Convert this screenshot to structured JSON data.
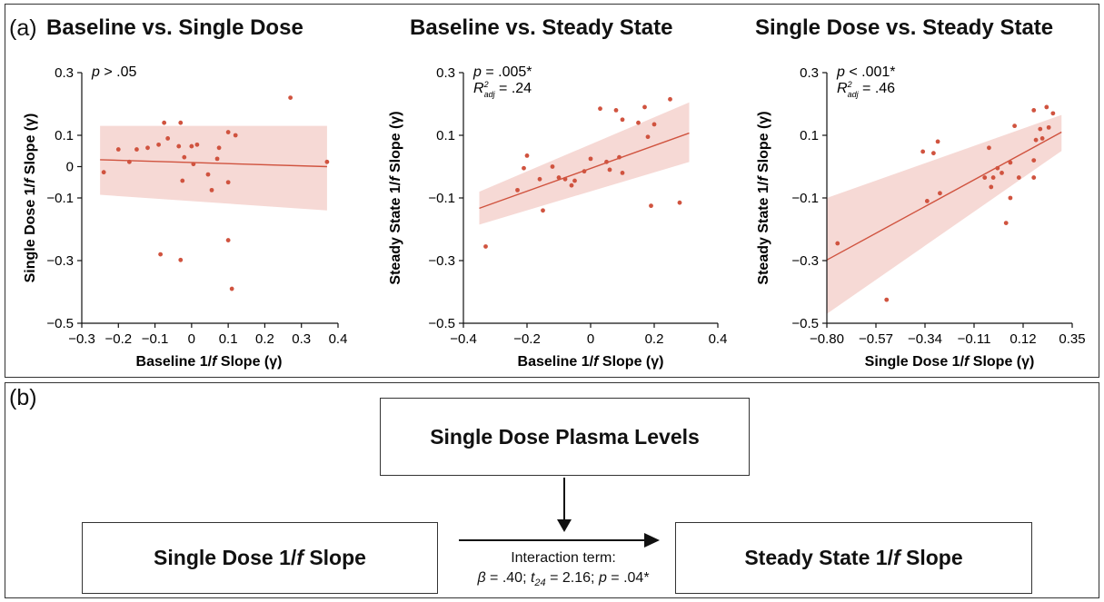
{
  "panel_a": {
    "letter": "(a)"
  },
  "panel_b": {
    "letter": "(b)",
    "moderator": "Single Dose Plasma Levels",
    "predictor": {
      "pre": "Single Dose 1/",
      "italic": "f",
      "post": " Slope"
    },
    "outcome": {
      "pre": "Steady State 1/",
      "italic": "f",
      "post": " Slope"
    },
    "interaction_label": "Interaction term:",
    "stats": [
      {
        "sym": "β",
        "text": " = .40; "
      },
      {
        "sym": "t",
        "sub": "24",
        "text": " = 2.16; "
      },
      {
        "sym": "p",
        "text": " = .04*"
      }
    ]
  },
  "chart_data": [
    {
      "type": "scatter",
      "title": "Baseline vs. Single Dose",
      "xlabel": {
        "pre": "Baseline 1/",
        "italic": "f",
        "post": " Slope (γ)"
      },
      "ylabel": {
        "pre": "Single Dose 1/",
        "italic": "f",
        "post": " Slope (γ)"
      },
      "xlim": [
        -0.3,
        0.4
      ],
      "ylim": [
        -0.5,
        0.3
      ],
      "xticks": [
        -0.3,
        -0.2,
        -0.1,
        0,
        0.1,
        0.2,
        0.3,
        0.4
      ],
      "xtick_labels": [
        "−0.3",
        "−0.2",
        "−0.1",
        "0",
        "0.1",
        "0.2",
        "0.3",
        "0.4"
      ],
      "yticks": [
        0.3,
        0.1,
        0,
        -0.1,
        -0.3,
        -0.5
      ],
      "ytick_labels": [
        "0.3",
        "0.1",
        "0",
        "−0.1",
        "−0.3",
        "−0.5"
      ],
      "stat": {
        "p_text": " > .05",
        "r2": ""
      },
      "fit": {
        "x": [
          -0.25,
          0.37
        ],
        "y": [
          0.022,
          0.0
        ]
      },
      "band": {
        "upper": [
          0.13,
          0.13
        ],
        "lower": [
          -0.09,
          -0.14
        ]
      },
      "color": "#d0533f",
      "band_color": "#f6d9d5",
      "points": [
        [
          0.27,
          0.22
        ],
        [
          -0.075,
          0.14
        ],
        [
          -0.03,
          0.14
        ],
        [
          -0.065,
          0.09
        ],
        [
          -0.09,
          0.07
        ],
        [
          0.1,
          0.11
        ],
        [
          0.12,
          0.1
        ],
        [
          -0.2,
          0.055
        ],
        [
          -0.15,
          0.055
        ],
        [
          -0.12,
          0.06
        ],
        [
          -0.035,
          0.065
        ],
        [
          0,
          0.065
        ],
        [
          0.015,
          0.07
        ],
        [
          0.075,
          0.06
        ],
        [
          -0.02,
          0.03
        ],
        [
          0.07,
          0.025
        ],
        [
          0.005,
          0.008
        ],
        [
          -0.17,
          0.015
        ],
        [
          -0.24,
          -0.018
        ],
        [
          0.37,
          0.015
        ],
        [
          0.045,
          -0.025
        ],
        [
          -0.025,
          -0.045
        ],
        [
          0.1,
          -0.05
        ],
        [
          0.055,
          -0.075
        ],
        [
          0.1,
          -0.235
        ],
        [
          -0.085,
          -0.28
        ],
        [
          -0.03,
          -0.298
        ],
        [
          0.11,
          -0.39
        ]
      ]
    },
    {
      "type": "scatter",
      "title": "Baseline vs. Steady State",
      "xlabel": {
        "pre": "Baseline 1/",
        "italic": "f",
        "post": " Slope (γ)"
      },
      "ylabel": {
        "pre": "Steady State 1/",
        "italic": "f",
        "post": " Slope (γ)"
      },
      "xlim": [
        -0.4,
        0.4
      ],
      "ylim": [
        -0.5,
        0.3
      ],
      "xticks": [
        -0.4,
        -0.2,
        0,
        0.2,
        0.4
      ],
      "xtick_labels": [
        "−0.4",
        "−0.2",
        "0",
        "0.2",
        "0.4"
      ],
      "yticks": [
        0.3,
        0.1,
        -0.1,
        -0.3,
        -0.5
      ],
      "ytick_labels": [
        "0.3",
        "0.1",
        "−0.1",
        "−0.3",
        "−0.5"
      ],
      "stat": {
        "p_text": " = .005*",
        "r2": " = .24"
      },
      "fit": {
        "x": [
          -0.35,
          0.31
        ],
        "y": [
          -0.133,
          0.107
        ]
      },
      "band": {
        "upper": [
          -0.08,
          0.205
        ],
        "lower": [
          -0.185,
          0.015
        ]
      },
      "color": "#d0533f",
      "band_color": "#f6d9d5",
      "points": [
        [
          0.25,
          0.215
        ],
        [
          0.03,
          0.185
        ],
        [
          0.08,
          0.18
        ],
        [
          0.17,
          0.19
        ],
        [
          0.1,
          0.15
        ],
        [
          0.15,
          0.14
        ],
        [
          0.2,
          0.135
        ],
        [
          0.18,
          0.095
        ],
        [
          -0.2,
          0.035
        ],
        [
          0.05,
          0.015
        ],
        [
          0.09,
          0.03
        ],
        [
          0.0,
          0.025
        ],
        [
          -0.21,
          -0.005
        ],
        [
          -0.12,
          0.0
        ],
        [
          -0.02,
          -0.015
        ],
        [
          0.06,
          -0.01
        ],
        [
          -0.16,
          -0.04
        ],
        [
          -0.1,
          -0.035
        ],
        [
          -0.08,
          -0.04
        ],
        [
          -0.05,
          -0.045
        ],
        [
          0.1,
          -0.02
        ],
        [
          -0.23,
          -0.075
        ],
        [
          -0.06,
          -0.06
        ],
        [
          -0.15,
          -0.14
        ],
        [
          0.19,
          -0.125
        ],
        [
          0.28,
          -0.115
        ],
        [
          -0.33,
          -0.255
        ]
      ]
    },
    {
      "type": "scatter",
      "title": "Single Dose vs. Steady State",
      "xlabel": {
        "pre": "Single Dose 1/",
        "italic": "f",
        "post": " Slope (γ)"
      },
      "ylabel": {
        "pre": "Steady State 1/",
        "italic": "f",
        "post": " Slope (γ)"
      },
      "xlim": [
        -0.8,
        0.35
      ],
      "ylim": [
        -0.5,
        0.3
      ],
      "xticks": [
        -0.8,
        -0.57,
        -0.34,
        -0.11,
        0.12,
        0.35
      ],
      "xtick_labels": [
        "−0.80",
        "−0.57",
        "−0.34",
        "−0.11",
        "0.12",
        "0.35"
      ],
      "yticks": [
        0.3,
        0.1,
        -0.1,
        -0.3,
        -0.5
      ],
      "ytick_labels": [
        "0.3",
        "0.1",
        "−0.1",
        "−0.3",
        "−0.5"
      ],
      "stat": {
        "p_text": " < .001*",
        "r2": " = .46"
      },
      "fit": {
        "x": [
          -0.8,
          0.3
        ],
        "y": [
          -0.298,
          0.11
        ]
      },
      "band": {
        "upper": [
          -0.1,
          0.165
        ],
        "lower": [
          -0.47,
          0.05
        ]
      },
      "color": "#d0533f",
      "band_color": "#f6d9d5",
      "points": [
        [
          0.23,
          0.19
        ],
        [
          0.17,
          0.18
        ],
        [
          0.26,
          0.17
        ],
        [
          0.08,
          0.13
        ],
        [
          0.2,
          0.12
        ],
        [
          0.24,
          0.125
        ],
        [
          0.18,
          0.085
        ],
        [
          0.21,
          0.09
        ],
        [
          -0.28,
          0.08
        ],
        [
          -0.04,
          0.06
        ],
        [
          -0.35,
          0.048
        ],
        [
          -0.3,
          0.043
        ],
        [
          0.17,
          0.02
        ],
        [
          0.06,
          0.013
        ],
        [
          0.0,
          -0.005
        ],
        [
          0.02,
          -0.02
        ],
        [
          -0.02,
          -0.035
        ],
        [
          0.1,
          -0.035
        ],
        [
          0.17,
          -0.035
        ],
        [
          -0.06,
          -0.035
        ],
        [
          -0.03,
          -0.065
        ],
        [
          -0.27,
          -0.085
        ],
        [
          0.06,
          -0.1
        ],
        [
          -0.33,
          -0.11
        ],
        [
          0.04,
          -0.18
        ],
        [
          -0.75,
          -0.245
        ],
        [
          -0.52,
          -0.425
        ]
      ]
    }
  ]
}
